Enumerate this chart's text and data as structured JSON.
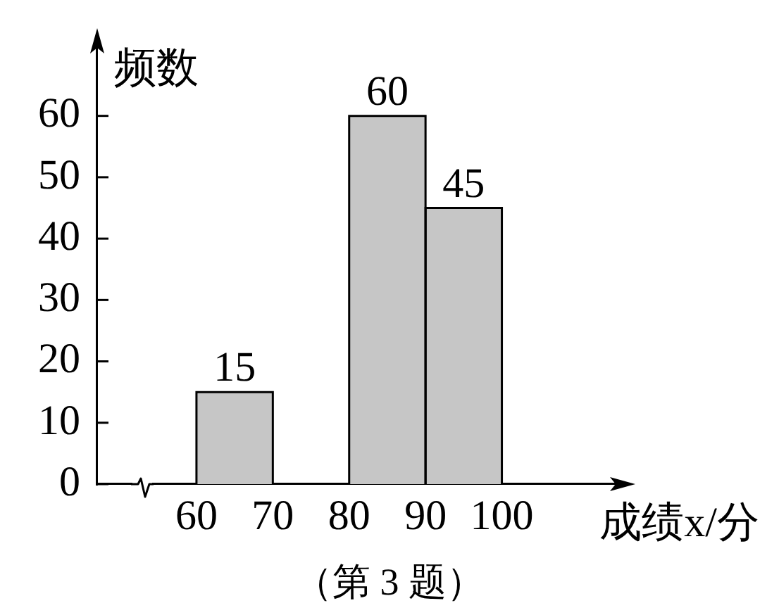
{
  "chart_data": {
    "type": "histogram",
    "xlabel": "成绩x/分",
    "ylabel": "频数",
    "annotations": [
      "（第 3 题）"
    ],
    "bins": [
      60,
      70,
      80,
      90,
      100
    ],
    "values": [
      15,
      null,
      60,
      45
    ],
    "color": "#c6c6c6",
    "data_labels": true,
    "xlim": [
      47,
      116
    ],
    "xticks": [
      60,
      70,
      80,
      90,
      100
    ],
    "ylim": [
      0,
      72
    ],
    "yticks": [
      0,
      10,
      20,
      30,
      40,
      50,
      60
    ],
    "grid": false,
    "legend": false
  }
}
